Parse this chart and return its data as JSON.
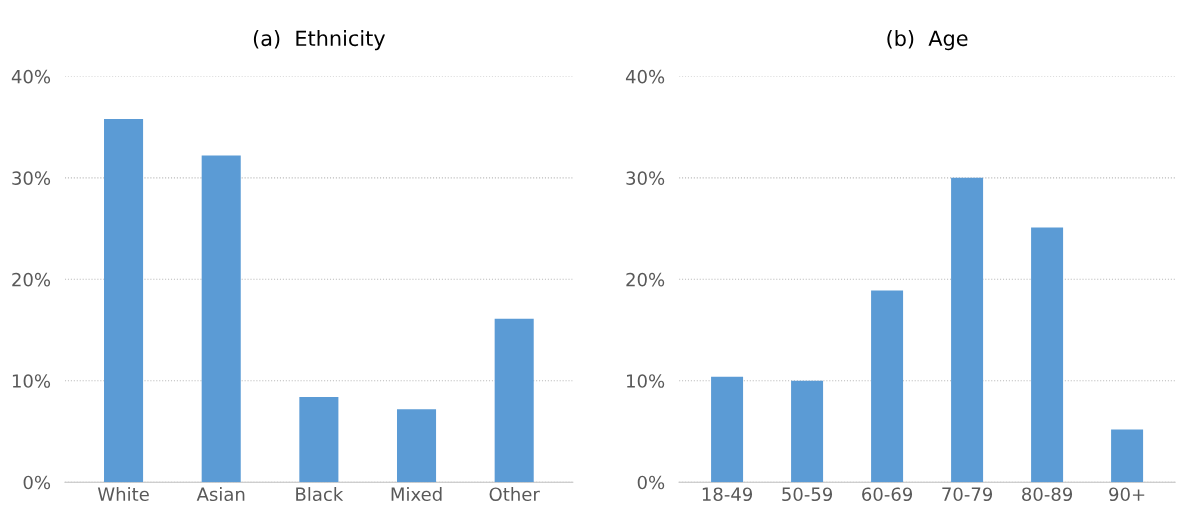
{
  "chart_data": [
    {
      "type": "bar",
      "title": "(a)  Ethnicity",
      "categories": [
        "White",
        "Asian",
        "Black",
        "Mixed",
        "Other"
      ],
      "values": [
        35.8,
        32.2,
        8.4,
        7.2,
        16.1
      ],
      "color": "#5b9bd5",
      "ylim": [
        0,
        40
      ],
      "yticks": [
        {
          "value": 0,
          "label": "0%"
        },
        {
          "value": 10,
          "label": "10%"
        },
        {
          "value": 20,
          "label": "20%"
        },
        {
          "value": 30,
          "label": "30%"
        },
        {
          "value": 40,
          "label": "40%"
        }
      ],
      "grid": "y"
    },
    {
      "type": "bar",
      "title": "(b)  Age",
      "categories": [
        "18-49",
        "50-59",
        "60-69",
        "70-79",
        "80-89",
        "90+"
      ],
      "values": [
        10.4,
        10.0,
        18.9,
        30.0,
        25.1,
        5.2
      ],
      "color": "#5b9bd5",
      "ylim": [
        0,
        40
      ],
      "yticks": [
        {
          "value": 0,
          "label": "0%"
        },
        {
          "value": 10,
          "label": "10%"
        },
        {
          "value": 20,
          "label": "20%"
        },
        {
          "value": 30,
          "label": "30%"
        },
        {
          "value": 40,
          "label": "40%"
        }
      ],
      "grid": "y"
    }
  ]
}
